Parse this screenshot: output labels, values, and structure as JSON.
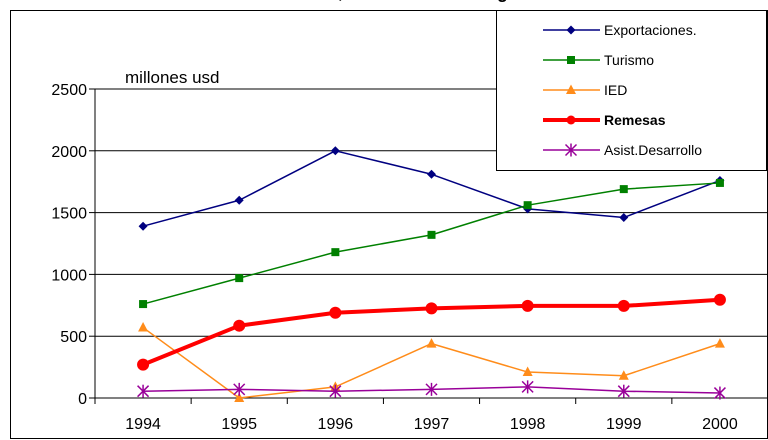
{
  "chart_data": {
    "type": "line",
    "title_visible_fragment": ", ",
    "title_visible_fragment_bold": "g",
    "ylabel": "millones usd",
    "ylim": [
      0,
      2500
    ],
    "yticks": [
      0,
      500,
      1000,
      1500,
      2000,
      2500
    ],
    "categories": [
      "1994",
      "1995",
      "1996",
      "1997",
      "1998",
      "1999",
      "2000"
    ],
    "grid": true,
    "legend_position": "top-right",
    "series": [
      {
        "name": "Exportaciones.",
        "color": "#000080",
        "marker": "diamond",
        "bold": false,
        "values": [
          1390,
          1600,
          2000,
          1810,
          1530,
          1460,
          1760
        ]
      },
      {
        "name": "Turismo",
        "color": "#008000",
        "marker": "square",
        "bold": false,
        "values": [
          760,
          970,
          1180,
          1320,
          1560,
          1690,
          1740
        ]
      },
      {
        "name": "IED",
        "color": "#ff8c1a",
        "marker": "triangle",
        "bold": false,
        "values": [
          570,
          0,
          90,
          440,
          210,
          180,
          440
        ]
      },
      {
        "name": "Remesas",
        "color": "#ff0000",
        "marker": "circle",
        "bold": true,
        "values": [
          270,
          585,
          690,
          725,
          745,
          745,
          795
        ]
      },
      {
        "name": "Asist.Desarrollo",
        "color": "#990099",
        "marker": "star",
        "bold": false,
        "values": [
          55,
          70,
          55,
          70,
          90,
          55,
          40
        ]
      }
    ]
  }
}
